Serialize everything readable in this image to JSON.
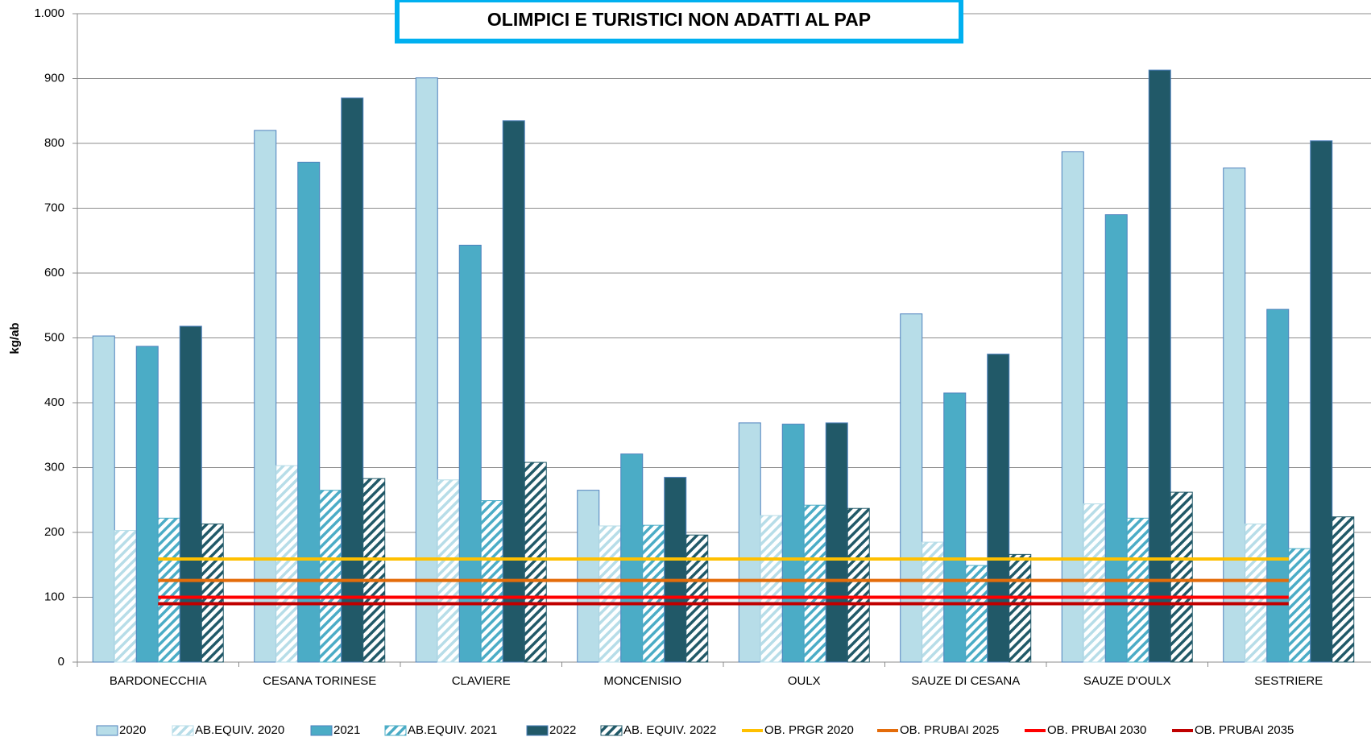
{
  "chart_data": {
    "type": "bar",
    "title": "OLIMPICI E TURISTICI NON ADATTI AL PAP",
    "y_label": "kg/ab",
    "categories": [
      "BARDONECCHIA",
      "CESANA TORINESE",
      "CLAVIERE",
      "MONCENISIO",
      "OULX",
      "SAUZE DI CESANA",
      "SAUZE D'OULX",
      "SESTRIERE"
    ],
    "series": [
      {
        "name": "2020",
        "type": "bar",
        "color": "#b7dde8",
        "values": [
          503,
          820,
          901,
          265,
          369,
          537,
          787,
          762
        ]
      },
      {
        "name": "AB.EQUIV. 2020",
        "type": "bar",
        "color": "#b7dde8",
        "pattern": "hatch",
        "values": [
          203,
          303,
          281,
          210,
          226,
          185,
          244,
          213
        ]
      },
      {
        "name": "2021",
        "type": "bar",
        "color": "#4bacc6",
        "values": [
          487,
          771,
          643,
          321,
          367,
          415,
          690,
          544
        ]
      },
      {
        "name": "AB.EQUIV. 2021",
        "type": "bar",
        "color": "#4bacc6",
        "pattern": "hatch",
        "values": [
          222,
          265,
          249,
          211,
          242,
          149,
          222,
          175
        ]
      },
      {
        "name": "2022",
        "type": "bar",
        "color": "#215968",
        "values": [
          518,
          870,
          835,
          285,
          369,
          475,
          913,
          804
        ]
      },
      {
        "name": "AB. EQUIV. 2022",
        "type": "bar",
        "color": "#215968",
        "pattern": "hatch",
        "values": [
          213,
          283,
          308,
          196,
          237,
          166,
          262,
          224
        ]
      },
      {
        "name": "OB. PRGR 2020",
        "type": "line",
        "color": "#ffc000",
        "values": [
          159,
          159,
          159,
          159,
          159,
          159,
          159,
          159
        ]
      },
      {
        "name": "OB. PRUBAI 2025",
        "type": "line",
        "color": "#e46c0a",
        "values": [
          126,
          126,
          126,
          126,
          126,
          126,
          126,
          126
        ]
      },
      {
        "name": "OB. PRUBAI 2030",
        "type": "line",
        "color": "#ff0000",
        "values": [
          100,
          100,
          100,
          100,
          100,
          100,
          100,
          100
        ]
      },
      {
        "name": "OB. PRUBAI 2035",
        "type": "line",
        "color": "#c00000",
        "values": [
          90,
          90,
          90,
          90,
          90,
          90,
          90,
          90
        ]
      }
    ],
    "ylim": [
      0,
      1000
    ],
    "yticks": [
      0,
      100,
      200,
      300,
      400,
      500,
      600,
      700,
      800,
      900,
      {
        "value": 1000,
        "label": "1.000"
      }
    ],
    "grid": true,
    "legend": "bottom"
  }
}
